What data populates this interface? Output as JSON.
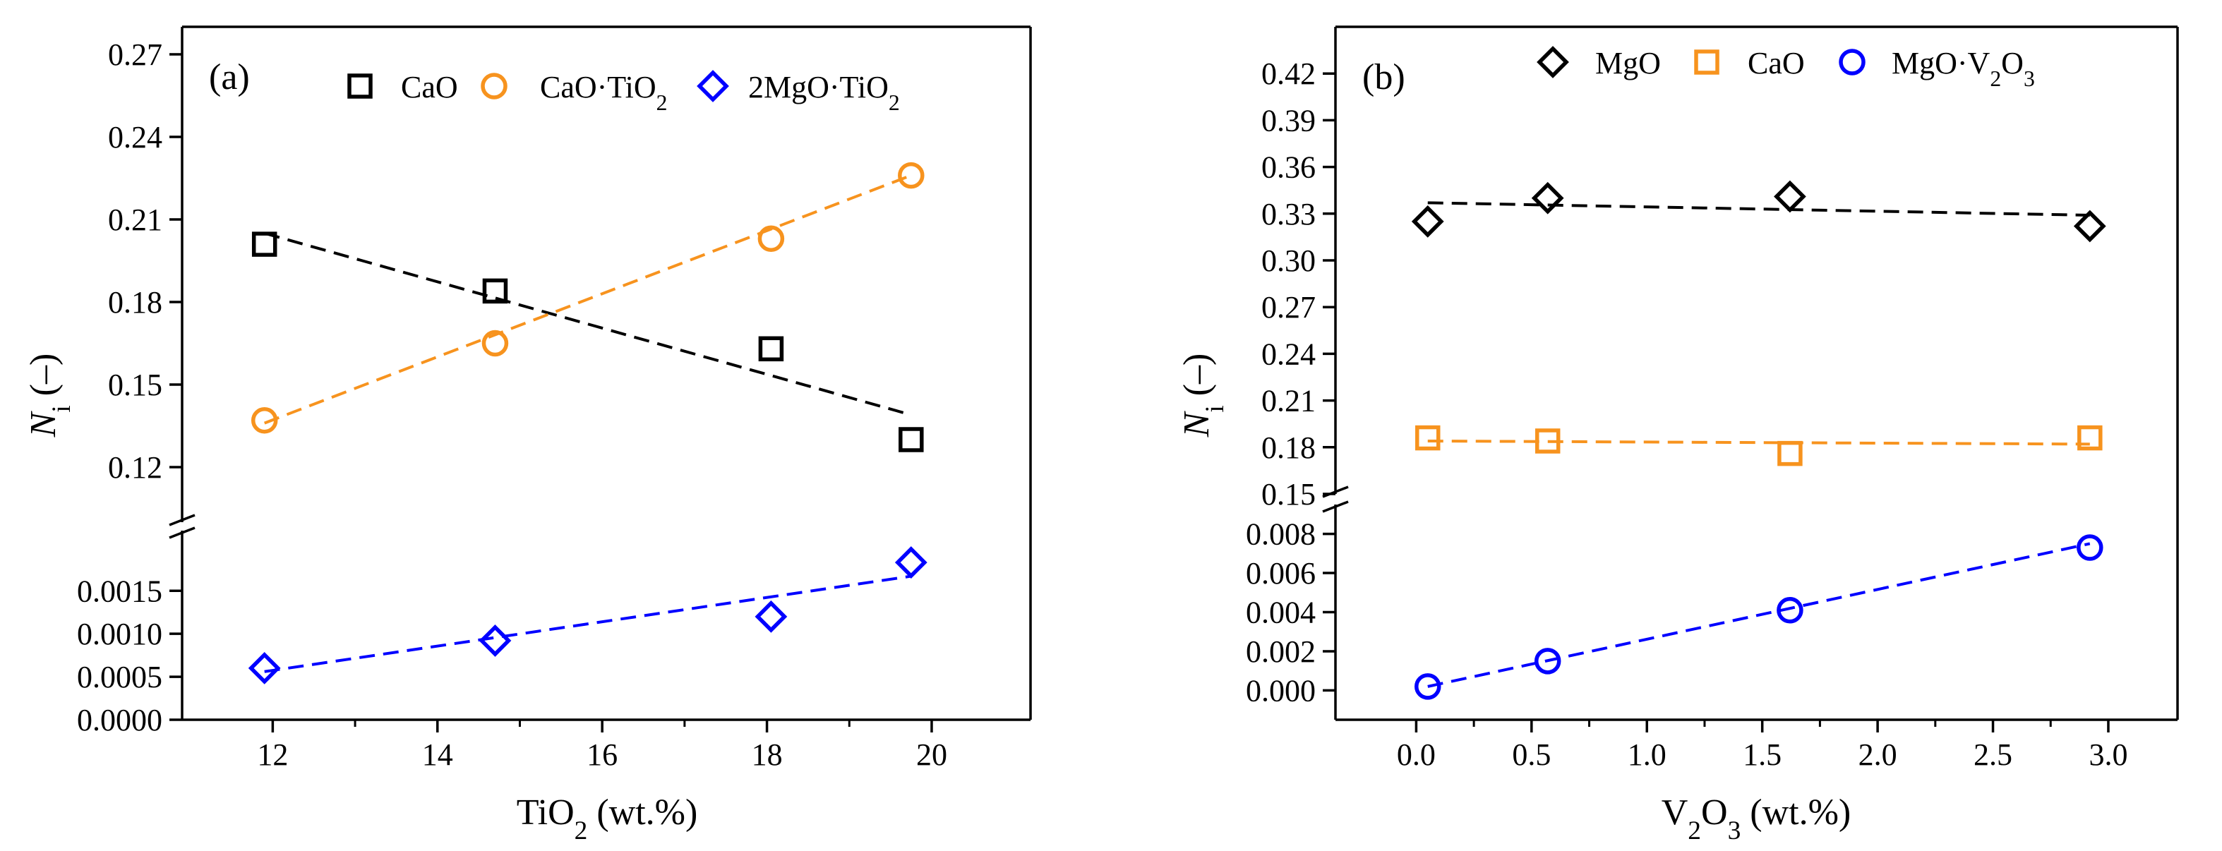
{
  "chart_data": [
    {
      "type": "scatter",
      "panel_label": "(a)",
      "xlabel": "TiO",
      "xlabel_sub": "2",
      "xlabel_tail": " (wt.%)",
      "ylabel": "N",
      "ylabel_sub": "i",
      "ylabel_tail": " (–)",
      "xlim": [
        10.9,
        21.2
      ],
      "xticks": [
        12,
        14,
        16,
        18,
        20
      ],
      "xtick_labels": [
        "12",
        "14",
        "16",
        "18",
        "20"
      ],
      "broken_y_axis": true,
      "ylim_upper": [
        0.1,
        0.28
      ],
      "yticks_upper": [
        0.12,
        0.15,
        0.18,
        0.21,
        0.24,
        0.27
      ],
      "ytick_labels_upper": [
        "0.12",
        "0.15",
        "0.18",
        "0.21",
        "0.24",
        "0.27"
      ],
      "ylim_lower": [
        0.0,
        0.0022
      ],
      "yticks_lower": [
        0.0,
        0.0005,
        0.001,
        0.0015
      ],
      "ytick_labels_lower": [
        "0.0000",
        "0.0005",
        "0.0010",
        "0.0015"
      ],
      "legend_position": "top",
      "series": [
        {
          "name": "CaO",
          "legend_parts": [
            [
              "CaO",
              ""
            ]
          ],
          "marker": "square",
          "color": "#000000",
          "segment": "upper",
          "x": [
            11.9,
            14.7,
            18.05,
            19.75
          ],
          "y": [
            0.201,
            0.184,
            0.163,
            0.13
          ],
          "fit": {
            "x": [
              11.9,
              19.75
            ],
            "y": [
              0.205,
              0.139
            ]
          }
        },
        {
          "name": "CaO·TiO2",
          "legend_parts": [
            [
              "CaO·TiO",
              ""
            ],
            [
              "2",
              "sub"
            ]
          ],
          "marker": "circle",
          "color": "#f7931e",
          "segment": "upper",
          "x": [
            11.9,
            14.7,
            18.05,
            19.75
          ],
          "y": [
            0.137,
            0.165,
            0.203,
            0.226
          ],
          "fit": {
            "x": [
              11.9,
              19.75
            ],
            "y": [
              0.136,
              0.226
            ]
          }
        },
        {
          "name": "2MgO·TiO2",
          "legend_parts": [
            [
              "2MgO·TiO",
              ""
            ],
            [
              "2",
              "sub"
            ]
          ],
          "marker": "diamond",
          "color": "#0000ff",
          "segment": "lower",
          "x": [
            11.9,
            14.7,
            18.05,
            19.75
          ],
          "y": [
            0.0006,
            0.00092,
            0.0012,
            0.00183
          ],
          "fit": {
            "x": [
              11.9,
              19.75
            ],
            "y": [
              0.00056,
              0.00167
            ]
          }
        }
      ]
    },
    {
      "type": "scatter",
      "panel_label": "(b)",
      "xlabel": "V",
      "xlabel_sub": "2",
      "xlabel_mid": "O",
      "xlabel_sub2": "3",
      "xlabel_tail": " (wt.%)",
      "ylabel": "N",
      "ylabel_sub": "i",
      "ylabel_tail": " (–)",
      "xlim": [
        -0.35,
        3.3
      ],
      "xticks": [
        0.0,
        0.5,
        1.0,
        1.5,
        2.0,
        2.5,
        3.0
      ],
      "xtick_labels": [
        "0.0",
        "0.5",
        "1.0",
        "1.5",
        "2.0",
        "2.5",
        "3.0"
      ],
      "broken_y_axis": true,
      "ylim_upper": [
        0.15,
        0.45
      ],
      "yticks_upper": [
        0.15,
        0.18,
        0.21,
        0.24,
        0.27,
        0.3,
        0.33,
        0.36,
        0.39,
        0.42
      ],
      "ytick_labels_upper": [
        "0.15",
        "0.18",
        "0.21",
        "0.24",
        "0.27",
        "0.30",
        "0.33",
        "0.36",
        "0.39",
        "0.42"
      ],
      "ylim_lower": [
        -0.0015,
        0.0095
      ],
      "yticks_lower": [
        0.0,
        0.002,
        0.004,
        0.006,
        0.008
      ],
      "ytick_labels_lower": [
        "0.000",
        "0.002",
        "0.004",
        "0.006",
        "0.008"
      ],
      "legend_position": "top",
      "series": [
        {
          "name": "MgO",
          "legend_parts": [
            [
              "MgO",
              ""
            ]
          ],
          "marker": "diamond",
          "color": "#000000",
          "segment": "upper",
          "x": [
            0.05,
            0.57,
            1.62,
            2.92
          ],
          "y": [
            0.325,
            0.34,
            0.341,
            0.322
          ],
          "fit": {
            "x": [
              0.05,
              2.92
            ],
            "y": [
              0.337,
              0.329
            ]
          }
        },
        {
          "name": "CaO",
          "legend_parts": [
            [
              "CaO",
              ""
            ]
          ],
          "marker": "square",
          "color": "#f7931e",
          "segment": "upper",
          "x": [
            0.05,
            0.57,
            1.62,
            2.92
          ],
          "y": [
            0.186,
            0.184,
            0.176,
            0.186
          ],
          "fit": {
            "x": [
              0.05,
              2.92
            ],
            "y": [
              0.184,
              0.182
            ]
          }
        },
        {
          "name": "MgO·V2O3",
          "legend_parts": [
            [
              "MgO·V",
              ""
            ],
            [
              "2",
              "sub"
            ],
            [
              "O",
              ""
            ],
            [
              "3",
              "sub"
            ]
          ],
          "marker": "circle",
          "color": "#0000ff",
          "segment": "lower",
          "x": [
            0.05,
            0.57,
            1.62,
            2.92
          ],
          "y": [
            0.0002,
            0.0015,
            0.0041,
            0.0073
          ],
          "fit": {
            "x": [
              0.05,
              2.92
            ],
            "y": [
              0.0002,
              0.0075
            ]
          }
        }
      ]
    }
  ]
}
